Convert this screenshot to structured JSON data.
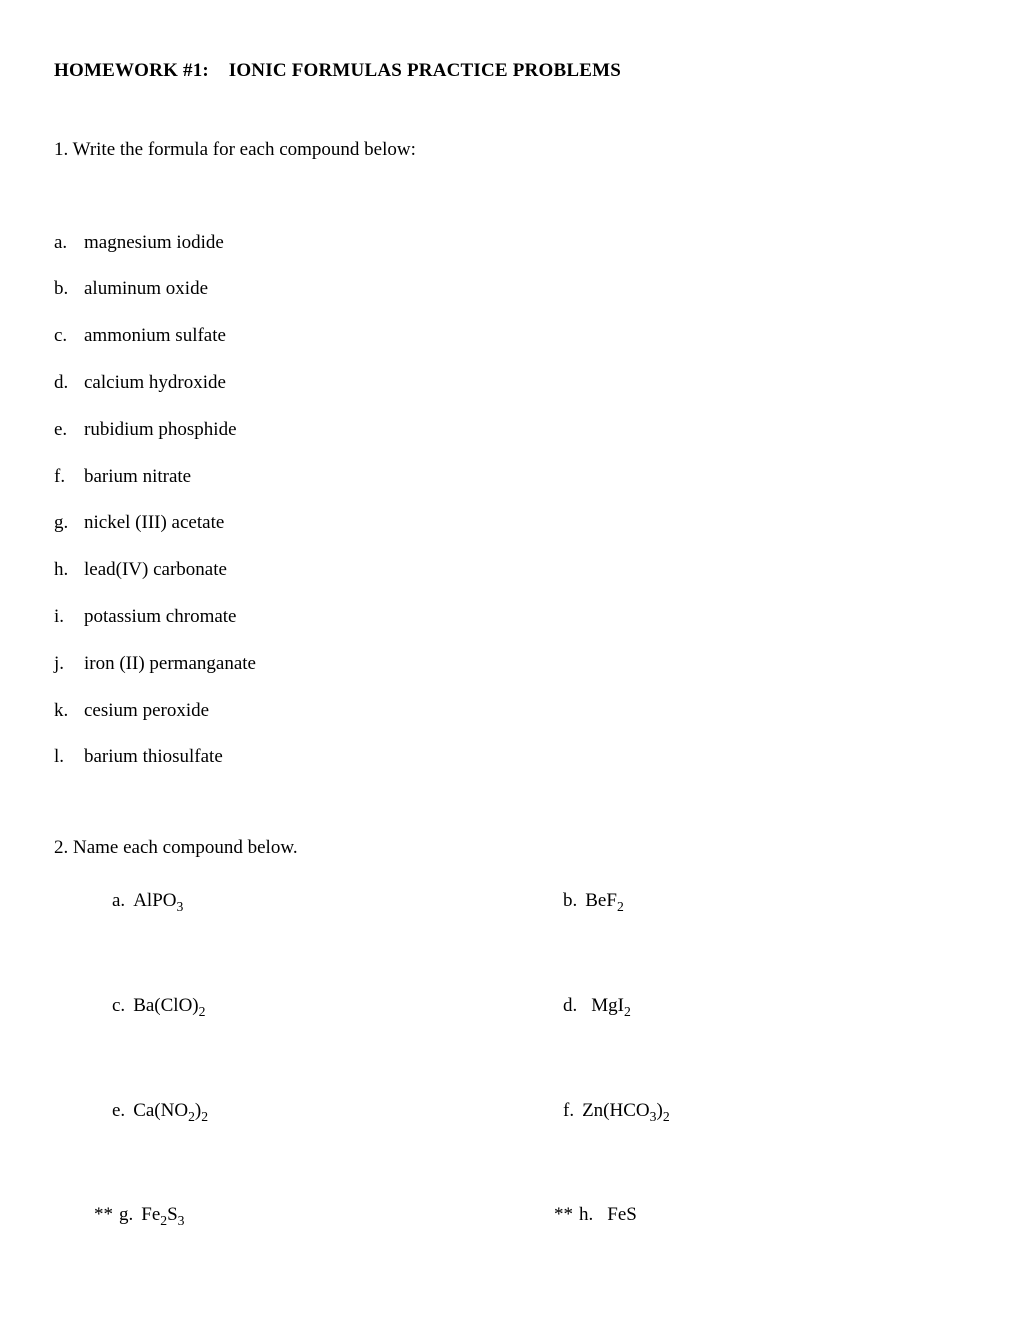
{
  "title_part1": "HOMEWORK #1:",
  "title_part2": "IONIC FORMULAS PRACTICE PROBLEMS",
  "q1": {
    "prompt": "1.  Write the formula for each compound below:",
    "items": [
      {
        "label": "a.",
        "text": "magnesium iodide"
      },
      {
        "label": "b.",
        "text": "aluminum oxide"
      },
      {
        "label": "c.",
        "text": "ammonium sulfate"
      },
      {
        "label": "d.",
        "text": "calcium hydroxide"
      },
      {
        "label": "e.",
        "text": "rubidium phosphide"
      },
      {
        "label": "f.",
        "text": "barium nitrate"
      },
      {
        "label": "g.",
        "text": "nickel (III) acetate"
      },
      {
        "label": "h.",
        "text": " lead(IV) carbonate"
      },
      {
        "label": "i.",
        "text": " potassium chromate"
      },
      {
        "label": "j.",
        "text": " iron (II) permanganate"
      },
      {
        "label": "k.",
        "text": " cesium peroxide"
      },
      {
        "label": "l.",
        "text": " barium thiosulfate"
      }
    ]
  },
  "q2": {
    "prompt": "2.  Name each compound below.",
    "rows": [
      {
        "left": {
          "prefix": "",
          "label": "a.",
          "formula": "AlPO",
          "sub": "3",
          "tail": ""
        },
        "right": {
          "prefix": "",
          "label": "b.",
          "formula": "BeF",
          "sub": "2",
          "tail": ""
        }
      },
      {
        "left": {
          "prefix": "",
          "label": "c.",
          "formula": "Ba(ClO)",
          "sub": "2",
          "tail": ""
        },
        "right": {
          "prefix": "",
          "label": "d.",
          "label_wide": true,
          "formula": "MgI",
          "sub": "2",
          "tail": ""
        }
      },
      {
        "left": {
          "prefix": "",
          "label": "e.",
          "formula": "Ca(NO",
          "sub": "2",
          "tail": ")",
          "sub2": "2"
        },
        "right": {
          "prefix": "",
          "label": "f.",
          "formula": "Zn(HCO",
          "sub": "3",
          "tail": ")",
          "sub2": "2"
        }
      },
      {
        "left": {
          "prefix": "** ",
          "label": "g.",
          "formula": "Fe",
          "sub": "2",
          "tail": "S",
          "sub2": "3"
        },
        "right": {
          "prefix": "** ",
          "label": "h.",
          "label_wide": true,
          "formula": "FeS",
          "sub": "",
          "tail": ""
        }
      }
    ]
  },
  "colors": {
    "background": "#ffffff",
    "text": "#000000"
  },
  "fontsize": 19,
  "font_family": "Times New Roman"
}
